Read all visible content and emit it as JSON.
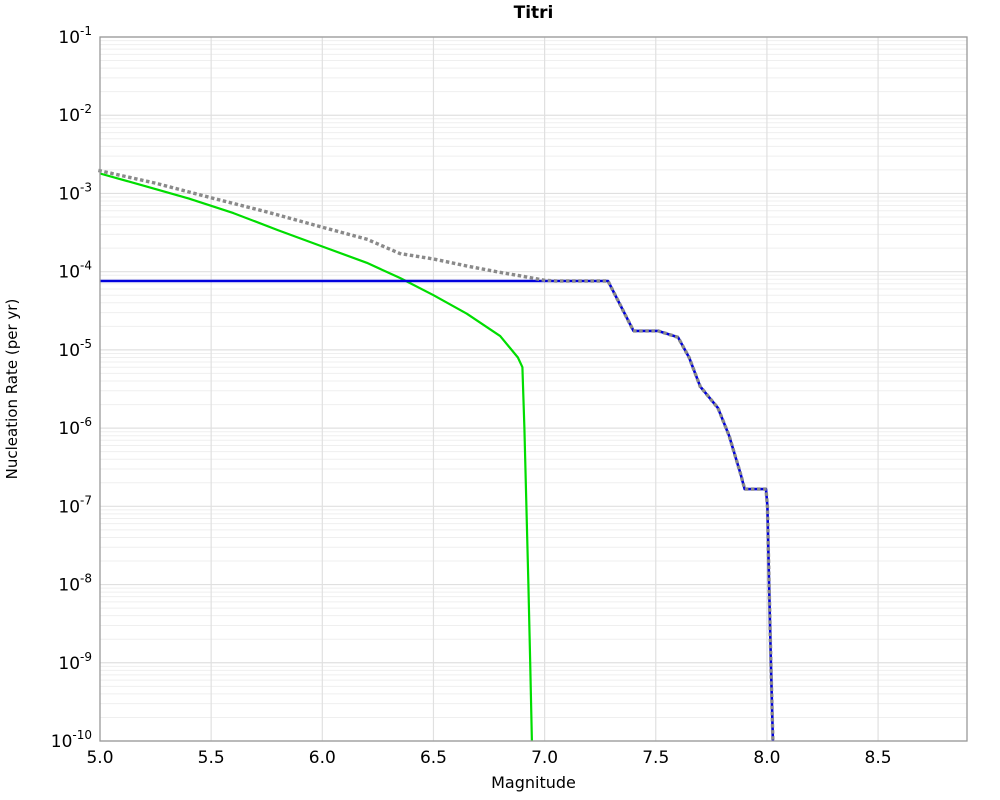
{
  "chart_data": {
    "type": "line",
    "title": "Titri",
    "xlabel": "Magnitude",
    "ylabel": "Nucleation Rate (per yr)",
    "legend": "none",
    "grid": {
      "major": true,
      "minor": true
    },
    "x_axis": {
      "min": 5.0,
      "max": 8.9,
      "tick_values": [
        5.0,
        5.5,
        6.0,
        6.5,
        7.0,
        7.5,
        8.0,
        8.5
      ],
      "tick_labels": [
        "5.0",
        "5.5",
        "6.0",
        "6.5",
        "7.0",
        "7.5",
        "8.0",
        "8.5"
      ]
    },
    "y_axis": {
      "scale": "log",
      "min": 1e-10,
      "max": 0.1,
      "tick_base": "10",
      "tick_exponents": [
        -1,
        -2,
        -3,
        -4,
        -5,
        -6,
        -7,
        -8,
        -9,
        -10
      ]
    },
    "series": [
      {
        "name": "green-curve",
        "color": "#00dd00",
        "style": "solid",
        "width": 2.2,
        "points": [
          [
            5.0,
            0.0018
          ],
          [
            5.2,
            0.00125
          ],
          [
            5.4,
            0.00086
          ],
          [
            5.6,
            0.00056
          ],
          [
            5.8,
            0.00034
          ],
          [
            6.0,
            0.00021
          ],
          [
            6.2,
            0.00013
          ],
          [
            6.35,
            8.3e-05
          ],
          [
            6.5,
            5e-05
          ],
          [
            6.65,
            2.9e-05
          ],
          [
            6.8,
            1.5e-05
          ],
          [
            6.88,
            8e-06
          ],
          [
            6.9,
            6e-06
          ],
          [
            6.909,
            1e-06
          ],
          [
            6.918,
            1e-07
          ],
          [
            6.927,
            1e-08
          ],
          [
            6.935,
            1e-09
          ],
          [
            6.943,
            1e-10
          ]
        ]
      },
      {
        "name": "blue-curve",
        "color": "#0000dd",
        "style": "solid",
        "width": 2.6,
        "points": [
          [
            5.0,
            7.6e-05
          ],
          [
            7.285,
            7.6e-05
          ],
          [
            7.4,
            1.75e-05
          ],
          [
            7.51,
            1.75e-05
          ],
          [
            7.6,
            1.45e-05
          ],
          [
            7.65,
            8e-06
          ],
          [
            7.7,
            3.4e-06
          ],
          [
            7.78,
            1.8e-06
          ],
          [
            7.83,
            8e-07
          ],
          [
            7.88,
            2.7e-07
          ],
          [
            7.9,
            1.66e-07
          ],
          [
            7.996,
            1.66e-07
          ],
          [
            8.002,
            1e-07
          ],
          [
            8.01,
            1e-08
          ],
          [
            8.018,
            1e-09
          ],
          [
            8.027,
            1e-10
          ]
        ]
      },
      {
        "name": "gray-dotted-curve",
        "color": "#8a8a8a",
        "style": "dotted",
        "width": 3.4,
        "points": [
          [
            5.0,
            0.00195
          ],
          [
            5.25,
            0.00135
          ],
          [
            5.5,
            0.00088
          ],
          [
            5.75,
            0.00058
          ],
          [
            6.0,
            0.00037
          ],
          [
            6.2,
            0.00026
          ],
          [
            6.35,
            0.00017
          ],
          [
            6.5,
            0.000145
          ],
          [
            6.65,
            0.000118
          ],
          [
            6.8,
            9.8e-05
          ],
          [
            6.9,
            8.75e-05
          ],
          [
            7.0,
            7.75e-05
          ],
          [
            7.05,
            7.6e-05
          ],
          [
            7.285,
            7.6e-05
          ],
          [
            7.4,
            1.75e-05
          ],
          [
            7.51,
            1.75e-05
          ],
          [
            7.6,
            1.45e-05
          ],
          [
            7.65,
            8e-06
          ],
          [
            7.7,
            3.4e-06
          ],
          [
            7.78,
            1.8e-06
          ],
          [
            7.83,
            8e-07
          ],
          [
            7.88,
            2.7e-07
          ],
          [
            7.9,
            1.66e-07
          ],
          [
            7.996,
            1.66e-07
          ],
          [
            8.002,
            1e-07
          ],
          [
            8.01,
            1e-08
          ],
          [
            8.018,
            1e-09
          ],
          [
            8.027,
            1e-10
          ]
        ]
      }
    ],
    "colors": {
      "frame": "#999999",
      "grid_major": "#e0e0e0",
      "grid_minor": "#efefef",
      "text": "#000000"
    }
  }
}
